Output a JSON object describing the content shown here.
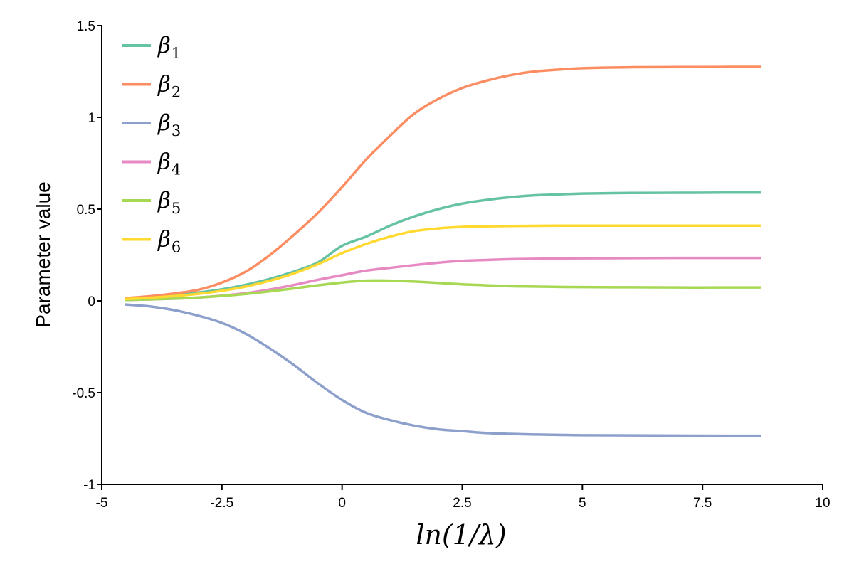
{
  "chart_data": {
    "type": "line",
    "title": "",
    "xlabel": "ln(1/λ)",
    "ylabel": "Parameter value",
    "xlim": [
      -5,
      10
    ],
    "ylim": [
      -1,
      1.5
    ],
    "xticks": [
      {
        "value": -5,
        "label": "-5"
      },
      {
        "value": -2.5,
        "label": "-2.5"
      },
      {
        "value": 0,
        "label": "0"
      },
      {
        "value": 2.5,
        "label": "2.5"
      },
      {
        "value": 5,
        "label": "5"
      },
      {
        "value": 7.5,
        "label": "7.5"
      },
      {
        "value": 10,
        "label": "10"
      }
    ],
    "yticks": [
      {
        "value": -1,
        "label": "-1"
      },
      {
        "value": -0.5,
        "label": "-0.5"
      },
      {
        "value": 0,
        "label": "0"
      },
      {
        "value": 0.5,
        "label": "0.5"
      },
      {
        "value": 1,
        "label": "1"
      },
      {
        "value": 1.5,
        "label": "1.5"
      }
    ],
    "grid": false,
    "legend_position": "top-left",
    "x": [
      -4.5,
      -4.0,
      -3.5,
      -3.0,
      -2.5,
      -2.0,
      -1.5,
      -1.0,
      -0.5,
      0.0,
      0.5,
      1.0,
      1.5,
      2.0,
      2.5,
      3.0,
      3.5,
      4.0,
      4.5,
      5.0,
      6.0,
      7.0,
      8.0,
      8.7
    ],
    "series": [
      {
        "name": "β",
        "sub": "1",
        "color": "#66c2a5",
        "values": [
          0.015,
          0.022,
          0.032,
          0.045,
          0.063,
          0.088,
          0.12,
          0.16,
          0.21,
          0.3,
          0.35,
          0.41,
          0.46,
          0.5,
          0.53,
          0.55,
          0.565,
          0.575,
          0.58,
          0.585,
          0.588,
          0.589,
          0.59,
          0.59
        ]
      },
      {
        "name": "β",
        "sub": "2",
        "color": "#fc8d62",
        "values": [
          0.015,
          0.025,
          0.04,
          0.06,
          0.1,
          0.16,
          0.25,
          0.36,
          0.48,
          0.62,
          0.77,
          0.9,
          1.02,
          1.1,
          1.16,
          1.2,
          1.23,
          1.25,
          1.26,
          1.268,
          1.273,
          1.274,
          1.275,
          1.275
        ]
      },
      {
        "name": "β",
        "sub": "3",
        "color": "#8da0cb",
        "values": [
          -0.02,
          -0.03,
          -0.05,
          -0.08,
          -0.12,
          -0.18,
          -0.26,
          -0.35,
          -0.45,
          -0.54,
          -0.61,
          -0.65,
          -0.68,
          -0.7,
          -0.71,
          -0.72,
          -0.725,
          -0.728,
          -0.73,
          -0.732,
          -0.733,
          -0.734,
          -0.735,
          -0.735
        ]
      },
      {
        "name": "β",
        "sub": "4",
        "color": "#e78ac3",
        "values": [
          0.005,
          0.008,
          0.012,
          0.018,
          0.028,
          0.042,
          0.062,
          0.087,
          0.115,
          0.14,
          0.165,
          0.18,
          0.195,
          0.208,
          0.218,
          0.223,
          0.227,
          0.229,
          0.231,
          0.232,
          0.233,
          0.234,
          0.234,
          0.234
        ]
      },
      {
        "name": "β",
        "sub": "5",
        "color": "#a6d854",
        "values": [
          0.005,
          0.008,
          0.012,
          0.018,
          0.027,
          0.038,
          0.052,
          0.068,
          0.085,
          0.1,
          0.11,
          0.11,
          0.105,
          0.098,
          0.09,
          0.085,
          0.08,
          0.078,
          0.076,
          0.075,
          0.074,
          0.073,
          0.073,
          0.073
        ]
      },
      {
        "name": "β",
        "sub": "6",
        "color": "#ffd92f",
        "values": [
          0.01,
          0.017,
          0.026,
          0.038,
          0.055,
          0.078,
          0.11,
          0.15,
          0.2,
          0.26,
          0.31,
          0.35,
          0.38,
          0.395,
          0.403,
          0.406,
          0.408,
          0.409,
          0.41,
          0.41,
          0.41,
          0.41,
          0.41,
          0.41
        ]
      }
    ]
  }
}
